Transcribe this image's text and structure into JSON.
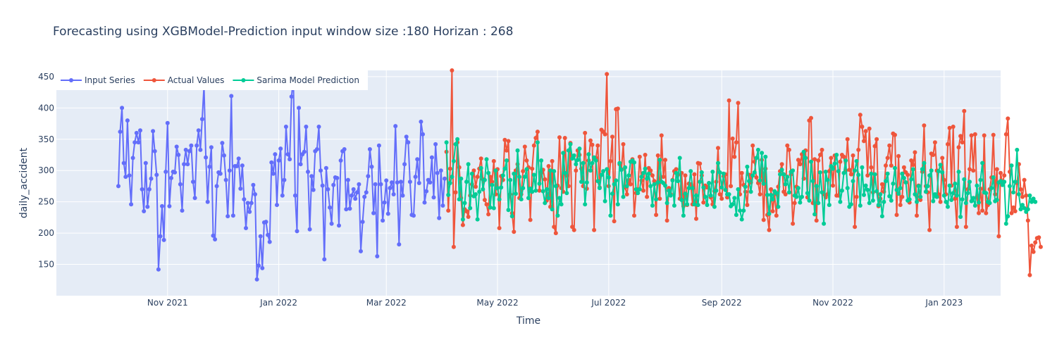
{
  "chart_data": {
    "type": "line",
    "title": "Forecasting using XGBModel-Prediction input window size :180  Horizan : 268",
    "xlabel": "Time",
    "ylabel": "daily_accident",
    "xlim": [
      "2021-09-01",
      "2023-02-01"
    ],
    "ylim": [
      100,
      460
    ],
    "grid": true,
    "legend_position": "top-left",
    "x_tick_labels": [
      {
        "date": "2021-11-01",
        "label": "Nov 2021"
      },
      {
        "date": "2022-01-01",
        "label": "Jan 2022"
      },
      {
        "date": "2022-03-01",
        "label": "Mar 2022"
      },
      {
        "date": "2022-05-01",
        "label": "May 2022"
      },
      {
        "date": "2022-07-01",
        "label": "Jul 2022"
      },
      {
        "date": "2022-09-01",
        "label": "Sep 2022"
      },
      {
        "date": "2022-11-01",
        "label": "Nov 2022"
      },
      {
        "date": "2023-01-01",
        "label": "Jan 2023"
      }
    ],
    "y_ticks": [
      150,
      200,
      250,
      300,
      350,
      400,
      450
    ],
    "series": [
      {
        "name": "Input Series",
        "color": "#636efa",
        "start_date": "2021-10-05",
        "step_days": 1,
        "values": [
          275,
          362,
          400,
          312,
          290,
          380,
          292,
          246,
          320,
          345,
          360,
          345,
          364,
          270,
          235,
          312,
          242,
          270,
          287,
          363,
          331,
          293,
          142,
          195,
          243,
          189,
          298,
          376,
          243,
          288,
          298,
          297,
          338,
          325,
          278,
          236,
          310,
          333,
          310,
          331,
          340,
          282,
          256,
          340,
          364,
          333,
          382,
          435,
          321,
          250,
          306,
          337,
          196,
          190,
          275,
          297,
          295,
          344,
          324,
          285,
          227,
          300,
          419,
          228,
          307,
          307,
          319,
          271,
          308,
          254,
          208,
          248,
          234,
          248,
          277,
          262,
          126,
          148,
          195,
          144,
          217,
          218,
          197,
          186,
          313,
          295,
          326,
          245,
          316,
          335,
          260,
          285,
          370,
          326,
          318,
          418,
          448,
          260,
          203,
          400,
          310,
          326,
          330,
          370,
          298,
          206,
          291,
          269,
          331,
          334,
          370,
          300,
          276,
          158,
          304,
          270,
          241,
          215,
          277,
          289,
          288,
          212,
          316,
          331,
          334,
          238,
          285,
          239,
          260,
          270,
          255,
          265,
          278,
          171,
          218,
          258,
          265,
          291,
          334,
          306,
          232,
          278,
          163,
          340,
          278,
          220,
          249,
          284,
          231,
          272,
          281,
          262,
          371,
          281,
          182,
          282,
          260,
          310,
          354,
          345,
          282,
          229,
          228,
          290,
          318,
          280,
          378,
          358,
          249,
          267,
          285,
          281,
          321,
          257,
          342,
          296,
          224,
          300,
          244,
          287
        ]
      },
      {
        "name": "Actual Values",
        "color": "#ef553b",
        "start_date": "2022-04-03",
        "step_days": 1,
        "values": [
          330,
          236,
          303,
          460,
          178,
          265,
          345,
          305,
          256,
          213,
          238,
          235,
          226,
          260,
          278,
          300,
          274,
          290,
          303,
          319,
          286,
          253,
          246,
          230,
          290,
          282,
          315,
          262,
          302,
          208,
          291,
          285,
          349,
          332,
          347,
          262,
          232,
          202,
          300,
          310,
          256,
          262,
          299,
          338,
          316,
          305,
          221,
          303,
          340,
          352,
          362,
          268,
          296,
          301,
          286,
          252,
          307,
          242,
          315,
          210,
          200,
          276,
          353,
          272,
          266,
          352,
          292,
          275,
          344,
          210,
          205,
          300,
          332,
          325,
          303,
          275,
          360,
          271,
          316,
          348,
          341,
          205,
          320,
          340,
          273,
          365,
          362,
          358,
          454,
          275,
          315,
          354,
          219,
          398,
          399,
          310,
          302,
          342,
          273,
          262,
          285,
          278,
          318,
          228,
          264,
          270,
          322,
          284,
          268,
          325,
          258,
          304,
          300,
          292,
          283,
          229,
          324,
          255,
          356,
          290,
          317,
          220,
          272,
          262,
          285,
          299,
          302,
          293,
          255,
          296,
          243,
          292,
          245,
          279,
          278,
          246,
          294,
          223,
          312,
          311,
          292,
          249,
          276,
          273,
          280,
          257,
          246,
          267,
          282,
          336,
          262,
          255,
          291,
          294,
          257,
          412,
          275,
          351,
          322,
          345,
          408,
          262,
          296,
          277,
          266,
          245,
          293,
          281,
          340,
          314,
          289,
          280,
          262,
          317,
          221,
          303,
          229,
          205,
          270,
          235,
          262,
          228,
          274,
          299,
          310,
          266,
          262,
          340,
          333,
          294,
          215,
          248,
          274,
          317,
          310,
          326,
          287,
          332,
          257,
          380,
          384,
          248,
          318,
          220,
          316,
          325,
          333,
          262,
          257,
          262,
          299,
          320,
          276,
          324,
          260,
          260,
          314,
          325,
          322,
          300,
          350,
          301,
          294,
          324,
          210,
          258,
          333,
          389,
          370,
          347,
          363,
          292,
          367,
          305,
          265,
          339,
          350,
          243,
          255,
          278,
          266,
          308,
          320,
          340,
          308,
          359,
          357,
          229,
          323,
          245,
          258,
          305,
          297,
          293,
          249,
          316,
          309,
          329,
          228,
          276,
          253,
          298,
          372,
          275,
          265,
          205,
          327,
          325,
          345,
          300,
          262,
          250,
          320,
          285,
          262,
          342,
          368,
          276,
          370,
          255,
          210,
          337,
          355,
          345,
          395,
          210,
          270,
          302,
          356,
          300,
          358,
          258,
          232,
          271,
          236,
          356,
          232,
          245,
          270,
          289,
          357,
          262,
          302,
          195,
          296,
          280,
          292,
          358,
          383,
          298,
          232,
          241,
          235,
          280,
          310,
          270,
          258,
          285,
          260,
          220,
          133,
          180,
          170,
          185,
          192,
          193,
          178
        ]
      },
      {
        "name": "Sarima Model Prediction",
        "color": "#00cc96",
        "start_date": "2022-04-03",
        "step_days": 1,
        "values": [
          345,
          261,
          280,
          290,
          315,
          342,
          350,
          254,
          287,
          222,
          248,
          282,
          310,
          240,
          295,
          259,
          262,
          222,
          266,
          304,
          270,
          285,
          318,
          296,
          241,
          277,
          240,
          300,
          272,
          254,
          273,
          292,
          303,
          316,
          237,
          285,
          227,
          295,
          263,
          332,
          290,
          254,
          272,
          290,
          302,
          256,
          271,
          266,
          293,
          268,
          345,
          279,
          316,
          267,
          248,
          270,
          256,
          300,
          238,
          299,
          275,
          228,
          256,
          246,
          328,
          296,
          264,
          332,
          342,
          319,
          324,
          310,
          317,
          335,
          282,
          312,
          246,
          281,
          326,
          300,
          312,
          321,
          316,
          283,
          272,
          293,
          299,
          251,
          302,
          289,
          228,
          263,
          278,
          284,
          246,
          312,
          301,
          258,
          305,
          275,
          292,
          314,
          316,
          313,
          270,
          264,
          270,
          290,
          296,
          303,
          287,
          295,
          275,
          244,
          278,
          254,
          281,
          317,
          282,
          280,
          276,
          248,
          268,
          260,
          284,
          244,
          296,
          283,
          320,
          253,
          228,
          263,
          246,
          272,
          299,
          272,
          246,
          260,
          245,
          282,
          297,
          273,
          258,
          245,
          280,
          260,
          298,
          242,
          268,
          312,
          297,
          273,
          295,
          269,
          262,
          262,
          243,
          246,
          256,
          229,
          270,
          236,
          222,
          236,
          274,
          306,
          283,
          266,
          292,
          297,
          320,
          333,
          284,
          328,
          279,
          322,
          261,
          231,
          261,
          254,
          267,
          264,
          242,
          294,
          301,
          294,
          278,
          290,
          265,
          298,
          300,
          260,
          258,
          272,
          249,
          258,
          330,
          320,
          264,
          252,
          314,
          283,
          230,
          275,
          248,
          297,
          265,
          215,
          298,
          285,
          245,
          307,
          303,
          311,
          325,
          299,
          250,
          268,
          296,
          316,
          272,
          242,
          246,
          283,
          300,
          315,
          293,
          244,
          305,
          261,
          276,
          269,
          248,
          295,
          252,
          294,
          267,
          245,
          262,
          227,
          250,
          283,
          295,
          259,
          252,
          279,
          304,
          269,
          263,
          272,
          295,
          288,
          281,
          252,
          254,
          286,
          302,
          262,
          250,
          275,
          258,
          302,
          312,
          266,
          275,
          292,
          300,
          251,
          262,
          258,
          299,
          309,
          297,
          260,
          250,
          242,
          276,
          253,
          264,
          279,
          260,
          298,
          226,
          254,
          286,
          248,
          264,
          282,
          251,
          256,
          244,
          276,
          249,
          285,
          312,
          265,
          264,
          250,
          248,
          272,
          289,
          251,
          253,
          281,
          283,
          277,
          282,
          215,
          227,
          275,
          308,
          265,
          282,
          333,
          262,
          238,
          245,
          240,
          234,
          238,
          260,
          250,
          255,
          250
        ]
      }
    ]
  }
}
